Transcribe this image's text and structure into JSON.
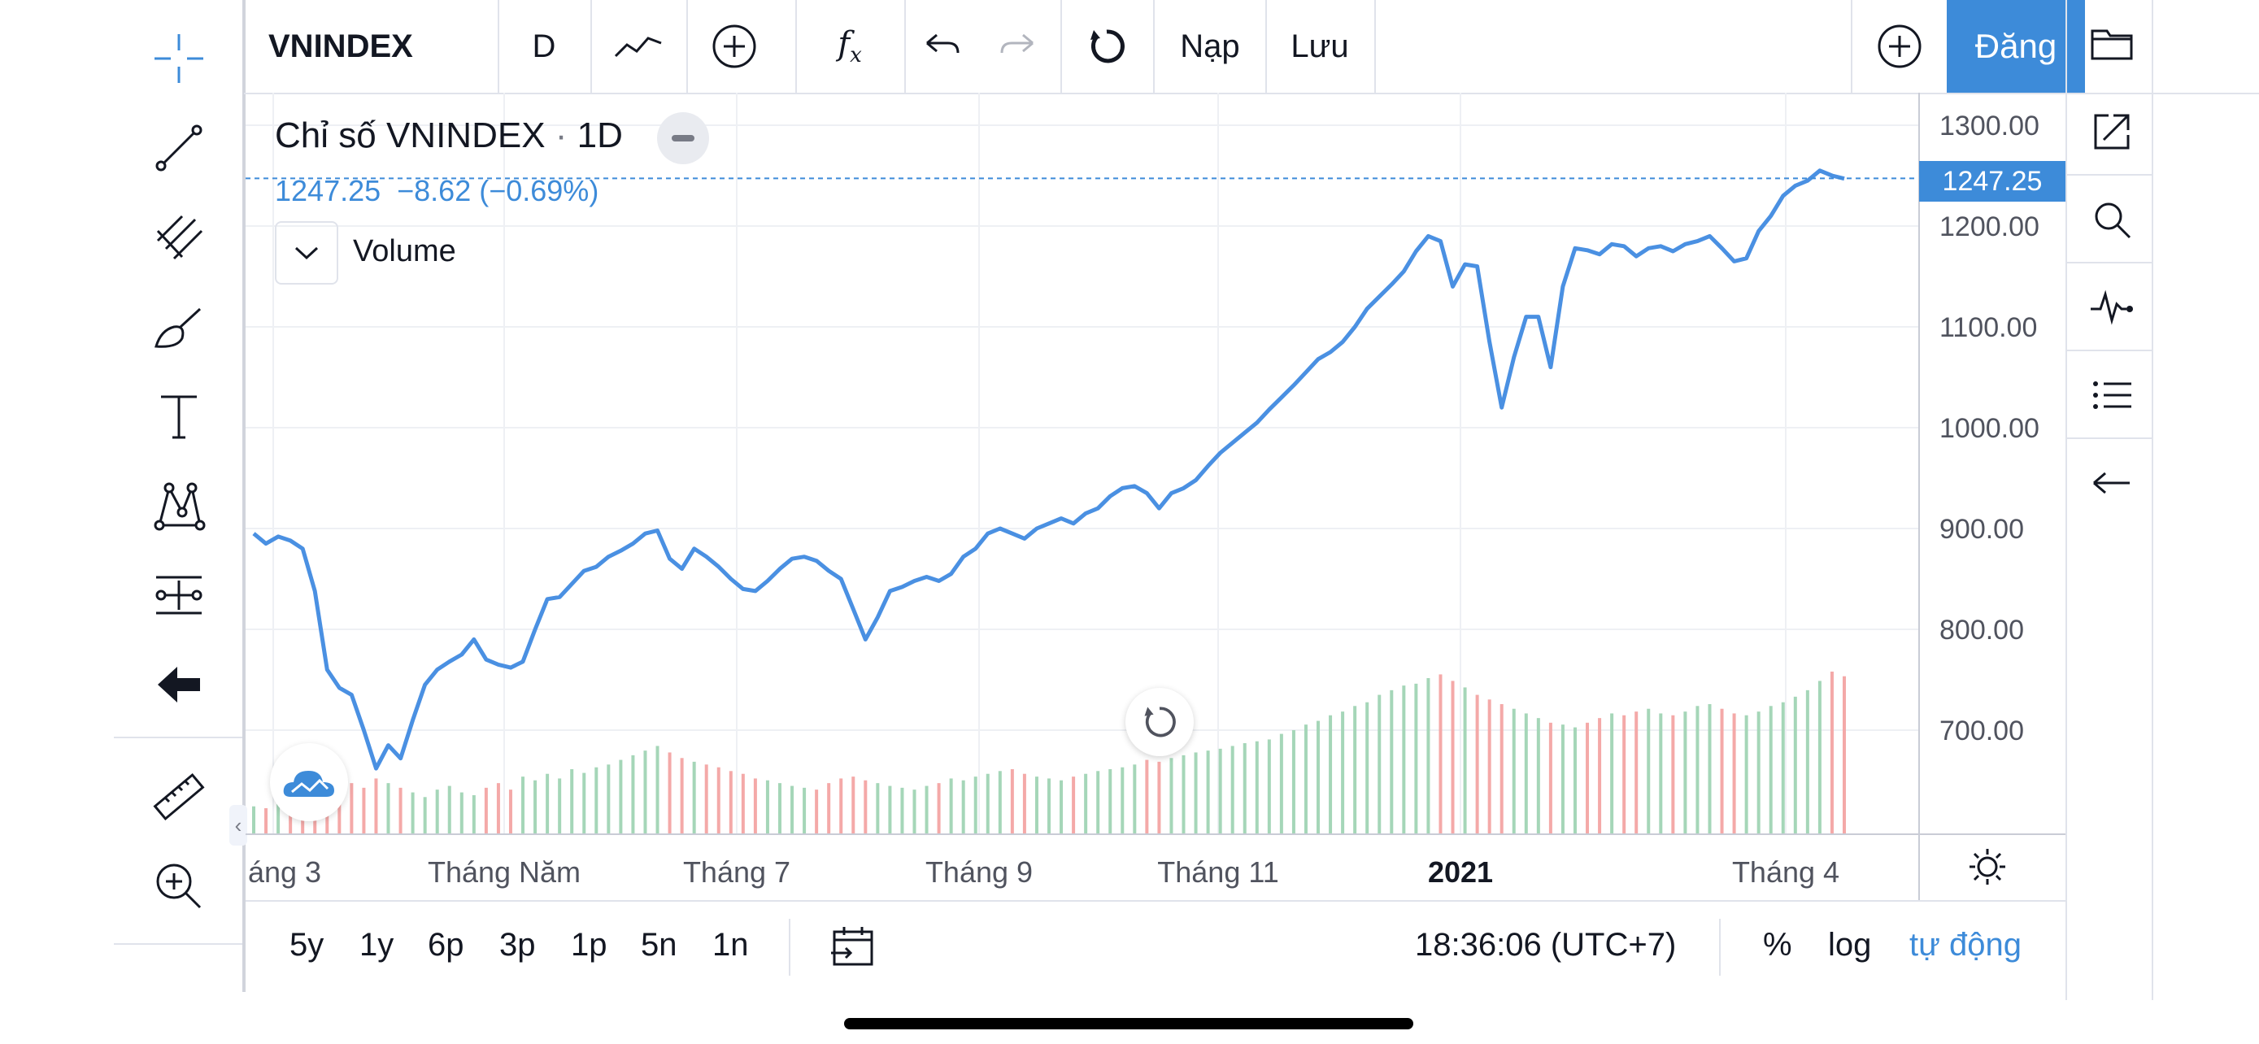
{
  "header": {
    "symbol": "VNINDEX",
    "interval": "D",
    "load_label": "Nạp",
    "save_label": "Lưu",
    "signup_label": "Đăng"
  },
  "legend": {
    "title": "Chỉ số VNINDEX",
    "interval": "1D",
    "separator": "·",
    "values": "1247.25  −8.62 (−0.69%)",
    "volume_label": "Volume"
  },
  "price_axis": {
    "labels": [
      "1300.00",
      "1200.00",
      "1100.00",
      "1000.00",
      "900.00",
      "800.00",
      "700.00"
    ],
    "last_price": "1247.25"
  },
  "time_axis": {
    "labels": [
      "áng 3",
      "Tháng Năm",
      "Tháng 7",
      "Tháng 9",
      "Tháng 11",
      "2021",
      "Tháng 4"
    ]
  },
  "bottom_bar": {
    "ranges": [
      "5y",
      "1y",
      "6p",
      "3p",
      "1p",
      "5n",
      "1n"
    ],
    "clock": "18:36:06 (UTC+7)",
    "percent_label": "%",
    "log_label": "log",
    "auto_label": "tự động"
  },
  "colors": {
    "line": "#4a90e2",
    "accent": "#3d8bd9",
    "volume_up": "#a5d6b8",
    "volume_down": "#f4a9a8"
  },
  "chart_data": {
    "type": "line",
    "title": "Chỉ số VNINDEX",
    "ylim": [
      600,
      1330
    ],
    "y_ticks": [
      700,
      800,
      900,
      1000,
      1100,
      1200,
      1300
    ],
    "x_ticks": [
      "áng 3",
      "Tháng Năm",
      "Tháng 7",
      "Tháng 9",
      "Tháng 11",
      "2021",
      "Tháng 4"
    ],
    "series": [
      {
        "values": [
          895,
          885,
          892,
          888,
          880,
          838,
          760,
          742,
          735,
          700,
          662,
          685,
          672,
          710,
          745,
          760,
          768,
          775,
          790,
          770,
          765,
          762,
          768,
          800,
          830,
          832,
          845,
          858,
          862,
          872,
          878,
          885,
          895,
          898,
          870,
          860,
          880,
          872,
          862,
          850,
          840,
          838,
          848,
          860,
          870,
          872,
          868,
          858,
          850,
          820,
          790,
          812,
          838,
          842,
          848,
          852,
          848,
          855,
          872,
          880,
          895,
          900,
          895,
          890,
          900,
          905,
          910,
          905,
          915,
          920,
          932,
          940,
          942,
          935,
          920,
          935,
          940,
          948,
          962,
          975,
          985,
          995,
          1005,
          1018,
          1030,
          1042,
          1055,
          1068,
          1075,
          1085,
          1100,
          1118,
          1130,
          1142,
          1155,
          1175,
          1190,
          1185,
          1140,
          1162,
          1160,
          1085,
          1020,
          1070,
          1110,
          1110,
          1060,
          1140,
          1178,
          1176,
          1172,
          1182,
          1180,
          1170,
          1178,
          1180,
          1175,
          1182,
          1185,
          1190,
          1178,
          1165,
          1168,
          1195,
          1210,
          1230,
          1240,
          1245,
          1255,
          1250,
          1247
        ]
      }
    ],
    "volume": {
      "values": [
        30,
        28,
        35,
        32,
        40,
        38,
        52,
        48,
        55,
        50,
        60,
        55,
        50,
        45,
        40,
        48,
        52,
        45,
        42,
        50,
        55,
        48,
        62,
        58,
        65,
        60,
        70,
        66,
        72,
        75,
        80,
        85,
        90,
        95,
        88,
        82,
        78,
        75,
        72,
        68,
        65,
        60,
        58,
        55,
        52,
        50,
        48,
        55,
        60,
        62,
        58,
        55,
        52,
        50,
        48,
        52,
        55,
        60,
        58,
        62,
        65,
        68,
        70,
        65,
        62,
        60,
        58,
        62,
        65,
        68,
        70,
        72,
        75,
        80,
        78,
        82,
        85,
        88,
        90,
        92,
        95,
        98,
        100,
        102,
        108,
        112,
        118,
        122,
        128,
        132,
        138,
        142,
        150,
        155,
        160,
        162,
        168,
        172,
        165,
        158,
        150,
        145,
        140,
        135,
        130,
        125,
        120,
        118,
        115,
        120,
        125,
        130,
        128,
        132,
        135,
        130,
        128,
        132,
        138,
        140,
        135,
        130,
        128,
        132,
        138,
        142,
        148,
        155,
        165,
        175,
        170
      ]
    }
  }
}
